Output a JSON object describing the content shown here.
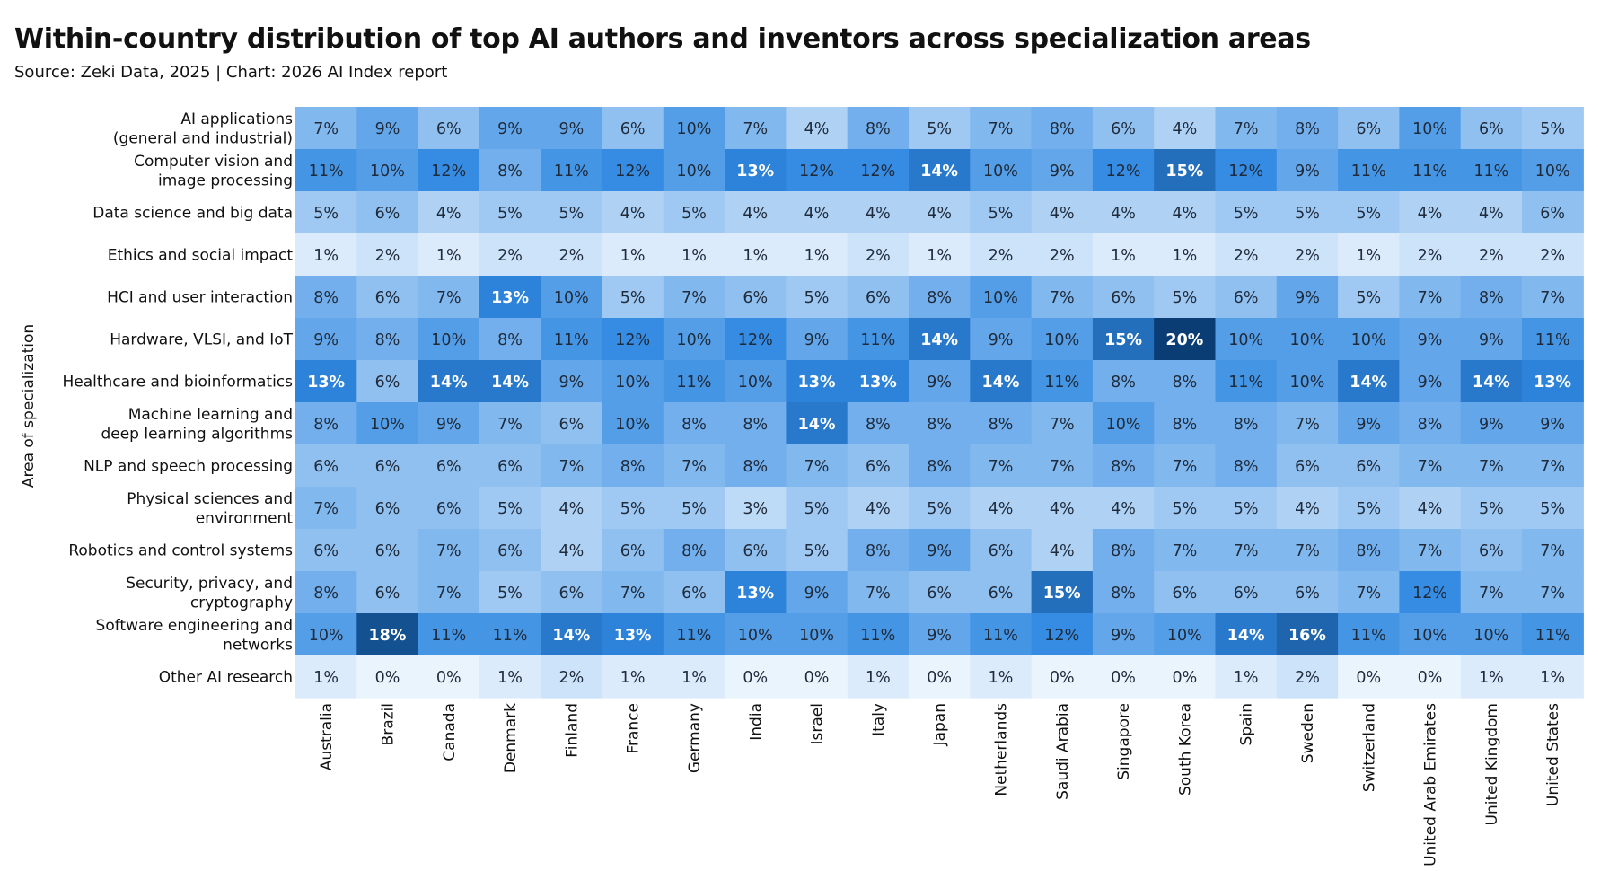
{
  "title": "Within-country distribution of top AI authors and inventors across specialization areas",
  "source": "Source: Zeki Data, 2025 | Chart: 2026 AI Index report",
  "chart_data": {
    "type": "heatmap",
    "ylabel": "Area of specialization",
    "xlabel": "",
    "rows": [
      "AI applications\n(general and industrial)",
      "Computer vision and\nimage processing",
      "Data science and big data",
      "Ethics and social impact",
      "HCI and user interaction",
      "Hardware, VLSI, and IoT",
      "Healthcare and bioinformatics",
      "Machine learning and\ndeep learning algorithms",
      "NLP and speech processing",
      "Physical sciences and\nenvironment",
      "Robotics and control systems",
      "Security, privacy, and\ncryptography",
      "Software engineering and\nnetworks",
      "Other AI research"
    ],
    "columns": [
      "Australia",
      "Brazil",
      "Canada",
      "Denmark",
      "Finland",
      "France",
      "Germany",
      "India",
      "Israel",
      "Italy",
      "Japan",
      "Netherlands",
      "Saudi Arabia",
      "Singapore",
      "South Korea",
      "Spain",
      "Sweden",
      "Switzerland",
      "United Arab Emirates",
      "United Kingdom",
      "United States"
    ],
    "value_suffix": "%",
    "values": [
      [
        7,
        9,
        6,
        9,
        9,
        6,
        10,
        7,
        4,
        8,
        5,
        7,
        8,
        6,
        4,
        7,
        8,
        6,
        10,
        6,
        5
      ],
      [
        11,
        10,
        12,
        8,
        11,
        12,
        10,
        13,
        12,
        12,
        14,
        10,
        9,
        12,
        15,
        12,
        9,
        11,
        11,
        11,
        10
      ],
      [
        5,
        6,
        4,
        5,
        5,
        4,
        5,
        4,
        4,
        4,
        4,
        5,
        4,
        4,
        4,
        5,
        5,
        5,
        4,
        4,
        6
      ],
      [
        1,
        2,
        1,
        2,
        2,
        1,
        1,
        1,
        1,
        2,
        1,
        2,
        2,
        1,
        1,
        2,
        2,
        1,
        2,
        2,
        2
      ],
      [
        8,
        6,
        7,
        13,
        10,
        5,
        7,
        6,
        5,
        6,
        8,
        10,
        7,
        6,
        5,
        6,
        9,
        5,
        7,
        8,
        7
      ],
      [
        9,
        8,
        10,
        8,
        11,
        12,
        10,
        12,
        9,
        11,
        14,
        9,
        10,
        15,
        20,
        10,
        10,
        10,
        9,
        9,
        11
      ],
      [
        13,
        6,
        14,
        14,
        9,
        10,
        11,
        10,
        13,
        13,
        9,
        14,
        11,
        8,
        8,
        11,
        10,
        14,
        9,
        14,
        13
      ],
      [
        8,
        10,
        9,
        7,
        6,
        10,
        8,
        8,
        14,
        8,
        8,
        8,
        7,
        10,
        8,
        8,
        7,
        9,
        8,
        9,
        9
      ],
      [
        6,
        6,
        6,
        6,
        7,
        8,
        7,
        8,
        7,
        6,
        8,
        7,
        7,
        8,
        7,
        8,
        6,
        6,
        7,
        7,
        7
      ],
      [
        7,
        6,
        6,
        5,
        4,
        5,
        5,
        3,
        5,
        4,
        5,
        4,
        4,
        4,
        5,
        5,
        4,
        5,
        4,
        5,
        5
      ],
      [
        6,
        6,
        7,
        6,
        4,
        6,
        8,
        6,
        5,
        8,
        9,
        6,
        4,
        8,
        7,
        7,
        7,
        8,
        7,
        6,
        7
      ],
      [
        8,
        6,
        7,
        5,
        6,
        7,
        6,
        13,
        9,
        7,
        6,
        6,
        15,
        8,
        6,
        6,
        6,
        7,
        12,
        7,
        7
      ],
      [
        10,
        18,
        11,
        11,
        14,
        13,
        11,
        10,
        10,
        11,
        9,
        11,
        12,
        9,
        10,
        14,
        16,
        11,
        10,
        10,
        11
      ],
      [
        1,
        0,
        0,
        1,
        2,
        1,
        1,
        0,
        0,
        1,
        0,
        1,
        0,
        0,
        0,
        1,
        2,
        0,
        0,
        1,
        1
      ]
    ],
    "colorscale": [
      "#eaf4fd",
      "#0a3d73"
    ],
    "colors": {
      "light_text": "#ffffff",
      "dark_text": "#1f2a3a"
    }
  }
}
